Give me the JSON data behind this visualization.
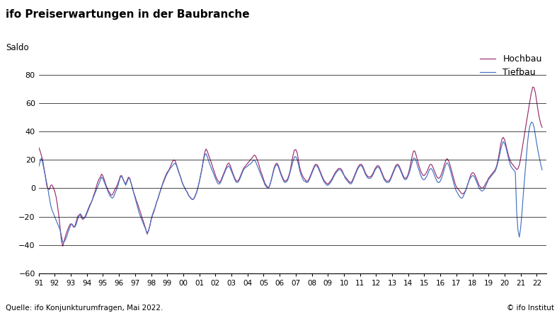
{
  "title": "ifo Preiserwartungen in der Baubranche",
  "ylabel": "Saldo",
  "source": "Quelle: ifo Konjunkturumfragen, Mai 2022.",
  "copyright": "© ifo Institut",
  "legend_hochbau": "Hochbau",
  "legend_tiefbau": "Tiefbau",
  "color_hochbau": "#9B2D6E",
  "color_tiefbau": "#4472C4",
  "ylim": [
    -60,
    90
  ],
  "yticks": [
    -60,
    -40,
    -20,
    0,
    20,
    40,
    60,
    80
  ],
  "background_color": "#FFFFFF",
  "hochbau": [
    29,
    27,
    24,
    22,
    18,
    12,
    8,
    2,
    0,
    -2,
    1,
    3,
    2,
    0,
    -2,
    -5,
    -10,
    -15,
    -22,
    -30,
    -38,
    -41,
    -38,
    -35,
    -32,
    -30,
    -28,
    -26,
    -25,
    -25,
    -27,
    -28,
    -26,
    -23,
    -20,
    -19,
    -18,
    -20,
    -22,
    -22,
    -21,
    -20,
    -18,
    -16,
    -14,
    -12,
    -10,
    -8,
    -5,
    -3,
    0,
    3,
    5,
    7,
    8,
    10,
    9,
    7,
    4,
    2,
    0,
    -2,
    -3,
    -5,
    -5,
    -4,
    -2,
    0,
    1,
    3,
    5,
    8,
    10,
    8,
    6,
    4,
    3,
    5,
    7,
    9,
    6,
    3,
    0,
    -3,
    -5,
    -8,
    -10,
    -12,
    -15,
    -17,
    -20,
    -22,
    -25,
    -27,
    -30,
    -33,
    -30,
    -27,
    -23,
    -20,
    -18,
    -16,
    -13,
    -10,
    -8,
    -5,
    -3,
    0,
    2,
    5,
    7,
    9,
    11,
    12,
    13,
    15,
    17,
    19,
    20,
    20,
    18,
    15,
    13,
    10,
    8,
    5,
    3,
    1,
    0,
    -2,
    -3,
    -5,
    -6,
    -7,
    -8,
    -8,
    -7,
    -5,
    -3,
    0,
    3,
    7,
    11,
    15,
    20,
    25,
    28,
    27,
    25,
    22,
    20,
    18,
    15,
    13,
    10,
    8,
    6,
    5,
    4,
    5,
    7,
    9,
    11,
    13,
    15,
    17,
    18,
    17,
    15,
    12,
    10,
    8,
    6,
    5,
    5,
    6,
    8,
    10,
    12,
    14,
    15,
    16,
    17,
    18,
    19,
    20,
    21,
    22,
    23,
    24,
    22,
    20,
    18,
    15,
    12,
    10,
    8,
    5,
    3,
    2,
    1,
    0,
    2,
    5,
    8,
    12,
    15,
    17,
    18,
    17,
    15,
    12,
    10,
    8,
    6,
    5,
    5,
    6,
    7,
    10,
    13,
    18,
    22,
    26,
    28,
    27,
    25,
    20,
    15,
    12,
    10,
    8,
    7,
    6,
    5,
    5,
    6,
    8,
    10,
    12,
    14,
    16,
    17,
    17,
    16,
    14,
    12,
    10,
    8,
    6,
    5,
    4,
    3,
    3,
    4,
    5,
    6,
    8,
    9,
    11,
    12,
    13,
    14,
    14,
    14,
    13,
    11,
    9,
    8,
    7,
    6,
    5,
    4,
    4,
    5,
    7,
    9,
    11,
    13,
    15,
    16,
    17,
    17,
    16,
    14,
    12,
    10,
    9,
    8,
    8,
    8,
    9,
    10,
    12,
    14,
    15,
    16,
    16,
    15,
    13,
    11,
    9,
    7,
    6,
    5,
    5,
    5,
    6,
    8,
    10,
    12,
    14,
    16,
    17,
    17,
    16,
    14,
    12,
    10,
    8,
    7,
    7,
    8,
    10,
    13,
    17,
    21,
    25,
    27,
    26,
    23,
    20,
    17,
    14,
    12,
    10,
    9,
    9,
    10,
    11,
    13,
    15,
    17,
    17,
    16,
    14,
    12,
    10,
    8,
    7,
    7,
    8,
    10,
    12,
    15,
    18,
    20,
    21,
    20,
    18,
    15,
    12,
    9,
    6,
    3,
    1,
    0,
    -1,
    -2,
    -3,
    -4,
    -4,
    -3,
    -2,
    0,
    3,
    5,
    8,
    10,
    11,
    11,
    10,
    8,
    6,
    4,
    2,
    1,
    0,
    0,
    1,
    2,
    4,
    5,
    7,
    8,
    9,
    10,
    11,
    12,
    13,
    15,
    18,
    22,
    27,
    32,
    35,
    36,
    35,
    32,
    28,
    25,
    22,
    20,
    18,
    17,
    16,
    15,
    14,
    13,
    14,
    16,
    20,
    25,
    30,
    35,
    40,
    45,
    50,
    55,
    60,
    65,
    69,
    72,
    71,
    68,
    63,
    57,
    52,
    48,
    45,
    43
  ],
  "tiefbau": [
    15,
    18,
    22,
    20,
    16,
    12,
    8,
    4,
    0,
    -5,
    -10,
    -14,
    -16,
    -18,
    -20,
    -22,
    -24,
    -26,
    -28,
    -30,
    -34,
    -38,
    -38,
    -37,
    -35,
    -33,
    -30,
    -28,
    -26,
    -25,
    -26,
    -28,
    -27,
    -25,
    -22,
    -20,
    -18,
    -18,
    -20,
    -22,
    -21,
    -19,
    -17,
    -15,
    -13,
    -11,
    -10,
    -8,
    -6,
    -4,
    -2,
    0,
    2,
    4,
    6,
    8,
    7,
    5,
    3,
    1,
    -1,
    -3,
    -5,
    -6,
    -7,
    -7,
    -5,
    -3,
    -1,
    1,
    4,
    7,
    9,
    8,
    6,
    4,
    2,
    4,
    6,
    8,
    6,
    3,
    0,
    -3,
    -6,
    -9,
    -12,
    -15,
    -18,
    -20,
    -22,
    -24,
    -26,
    -28,
    -30,
    -32,
    -30,
    -27,
    -23,
    -20,
    -17,
    -15,
    -13,
    -10,
    -8,
    -5,
    -3,
    0,
    2,
    4,
    6,
    8,
    10,
    11,
    13,
    14,
    15,
    16,
    17,
    18,
    17,
    15,
    12,
    10,
    8,
    5,
    3,
    1,
    0,
    -2,
    -3,
    -5,
    -6,
    -7,
    -8,
    -8,
    -7,
    -5,
    -3,
    0,
    3,
    7,
    11,
    15,
    20,
    23,
    25,
    23,
    21,
    18,
    16,
    14,
    12,
    10,
    8,
    6,
    4,
    3,
    3,
    4,
    6,
    8,
    10,
    12,
    14,
    15,
    16,
    15,
    13,
    11,
    9,
    7,
    5,
    4,
    4,
    5,
    7,
    9,
    11,
    13,
    14,
    15,
    15,
    16,
    17,
    17,
    18,
    19,
    20,
    20,
    18,
    16,
    14,
    12,
    10,
    8,
    6,
    4,
    2,
    1,
    0,
    0,
    2,
    5,
    8,
    11,
    14,
    16,
    17,
    16,
    14,
    11,
    9,
    7,
    5,
    4,
    4,
    5,
    6,
    9,
    12,
    15,
    18,
    21,
    23,
    22,
    20,
    17,
    13,
    10,
    8,
    6,
    5,
    5,
    4,
    4,
    5,
    7,
    9,
    11,
    13,
    15,
    16,
    16,
    15,
    13,
    11,
    9,
    7,
    5,
    4,
    3,
    2,
    2,
    3,
    4,
    5,
    7,
    8,
    10,
    11,
    12,
    13,
    13,
    13,
    12,
    10,
    9,
    7,
    6,
    5,
    4,
    3,
    3,
    4,
    6,
    8,
    10,
    12,
    14,
    15,
    16,
    16,
    15,
    13,
    11,
    9,
    8,
    7,
    7,
    7,
    8,
    9,
    11,
    13,
    14,
    15,
    15,
    14,
    12,
    10,
    8,
    6,
    5,
    4,
    4,
    4,
    5,
    7,
    9,
    11,
    13,
    15,
    16,
    16,
    15,
    13,
    11,
    9,
    7,
    6,
    6,
    7,
    9,
    11,
    14,
    17,
    20,
    22,
    21,
    19,
    16,
    14,
    11,
    9,
    7,
    6,
    6,
    7,
    8,
    10,
    12,
    14,
    14,
    13,
    11,
    9,
    7,
    5,
    4,
    4,
    5,
    7,
    9,
    12,
    15,
    17,
    18,
    17,
    15,
    12,
    9,
    6,
    3,
    0,
    -2,
    -3,
    -5,
    -6,
    -7,
    -7,
    -6,
    -4,
    -2,
    0,
    3,
    5,
    7,
    8,
    9,
    9,
    8,
    6,
    4,
    2,
    0,
    -1,
    -2,
    -2,
    -1,
    0,
    2,
    4,
    6,
    7,
    8,
    9,
    10,
    11,
    12,
    14,
    17,
    20,
    24,
    28,
    31,
    33,
    32,
    30,
    27,
    23,
    20,
    17,
    15,
    14,
    13,
    12,
    11,
    -25,
    -30,
    -35,
    -30,
    -22,
    -10,
    0,
    10,
    20,
    30,
    38,
    43,
    46,
    47,
    46,
    43,
    38,
    33,
    28,
    24,
    20,
    16,
    13
  ]
}
